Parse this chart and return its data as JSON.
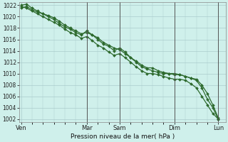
{
  "bg_color": "#cff0eb",
  "grid_color": "#aacccc",
  "line_color": "#2d6a2d",
  "marker_color": "#2d6a2d",
  "xlabel": "Pression niveau de la mer( hPa )",
  "ylim": [
    1001.5,
    1022.5
  ],
  "yticks": [
    1002,
    1004,
    1006,
    1008,
    1010,
    1012,
    1014,
    1016,
    1018,
    1020,
    1022
  ],
  "xtick_labels": [
    "Ven",
    "Mar",
    "Sam",
    "Dim",
    "Lun"
  ],
  "xtick_positions": [
    0,
    36,
    54,
    84,
    108
  ],
  "vline_positions": [
    36,
    54,
    84,
    108
  ],
  "line1_x": [
    0,
    3,
    6,
    9,
    12,
    15,
    18,
    21,
    24,
    27,
    30,
    33,
    36,
    39,
    42,
    45,
    48,
    51,
    54,
    57,
    60,
    63,
    66,
    69,
    72,
    75,
    78,
    81,
    84,
    87,
    90,
    93,
    96,
    99,
    102,
    105,
    108
  ],
  "line1_y": [
    1021.5,
    1021.8,
    1021.2,
    1020.8,
    1020.5,
    1020.2,
    1019.8,
    1019.2,
    1018.5,
    1018.0,
    1017.5,
    1017.0,
    1017.2,
    1016.8,
    1016.3,
    1015.5,
    1015.0,
    1014.5,
    1014.2,
    1013.5,
    1012.8,
    1012.2,
    1011.5,
    1011.0,
    1011.0,
    1010.5,
    1010.2,
    1010.0,
    1010.0,
    1009.8,
    1009.5,
    1009.2,
    1009.0,
    1008.0,
    1006.5,
    1004.5,
    1002.2
  ],
  "line2_x": [
    0,
    3,
    6,
    9,
    12,
    15,
    18,
    21,
    24,
    27,
    30,
    33,
    36,
    39,
    42,
    45,
    48,
    51,
    54,
    57,
    60,
    63,
    66,
    69,
    72,
    75,
    78,
    81,
    84,
    87,
    90,
    93,
    96,
    99,
    102,
    105,
    108
  ],
  "line2_y": [
    1022.0,
    1022.2,
    1021.5,
    1021.0,
    1020.5,
    1020.0,
    1019.5,
    1018.8,
    1018.2,
    1017.8,
    1017.2,
    1016.8,
    1017.5,
    1016.8,
    1016.0,
    1015.2,
    1014.8,
    1014.0,
    1014.5,
    1013.8,
    1012.8,
    1012.0,
    1011.2,
    1010.8,
    1010.5,
    1010.2,
    1010.0,
    1010.0,
    1009.8,
    1009.8,
    1009.5,
    1009.2,
    1008.8,
    1007.5,
    1005.5,
    1004.0,
    1002.0
  ],
  "line3_x": [
    0,
    3,
    6,
    9,
    12,
    15,
    18,
    21,
    24,
    27,
    30,
    33,
    36,
    39,
    42,
    45,
    48,
    51,
    54,
    57,
    60,
    63,
    66,
    69,
    72,
    75,
    78,
    81,
    84,
    87,
    90,
    93,
    96,
    99,
    102,
    105,
    108
  ],
  "line3_y": [
    1021.8,
    1021.5,
    1021.0,
    1020.5,
    1020.0,
    1019.5,
    1019.0,
    1018.5,
    1017.8,
    1017.2,
    1016.8,
    1016.2,
    1016.5,
    1015.8,
    1015.0,
    1014.5,
    1013.8,
    1013.2,
    1013.5,
    1012.8,
    1012.0,
    1011.2,
    1010.5,
    1010.0,
    1010.0,
    1009.8,
    1009.5,
    1009.2,
    1009.0,
    1009.0,
    1008.8,
    1008.2,
    1007.5,
    1006.0,
    1004.5,
    1003.0,
    1002.0
  ]
}
